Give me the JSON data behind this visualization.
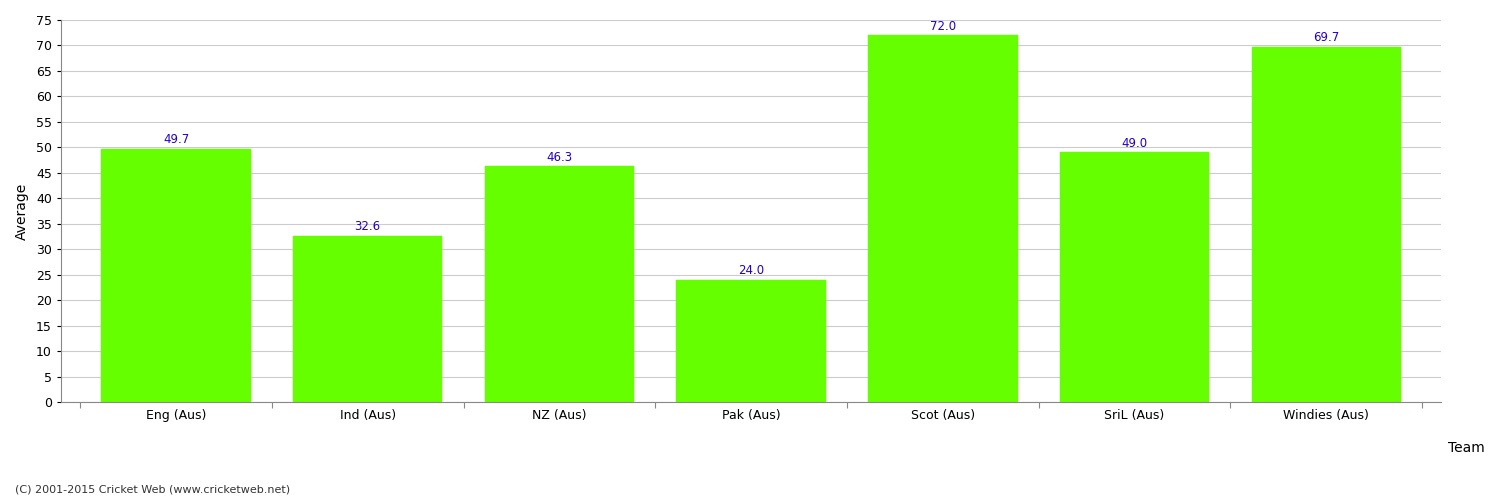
{
  "categories": [
    "Eng (Aus)",
    "Ind (Aus)",
    "NZ (Aus)",
    "Pak (Aus)",
    "Scot (Aus)",
    "SriL (Aus)",
    "Windies (Aus)"
  ],
  "values": [
    49.7,
    32.6,
    46.3,
    24.0,
    72.0,
    49.0,
    69.7
  ],
  "bar_color": "#66ff00",
  "bar_edge_color": "#66ff00",
  "value_color": "#2200cc",
  "xlabel": "Team",
  "ylabel": "Average",
  "ylim": [
    0,
    75
  ],
  "yticks": [
    0,
    5,
    10,
    15,
    20,
    25,
    30,
    35,
    40,
    45,
    50,
    55,
    60,
    65,
    70,
    75
  ],
  "background_color": "#ffffff",
  "grid_color": "#cccccc",
  "footnote": "(C) 2001-2015 Cricket Web (www.cricketweb.net)",
  "value_fontsize": 8.5,
  "axis_label_fontsize": 10,
  "tick_fontsize": 9
}
